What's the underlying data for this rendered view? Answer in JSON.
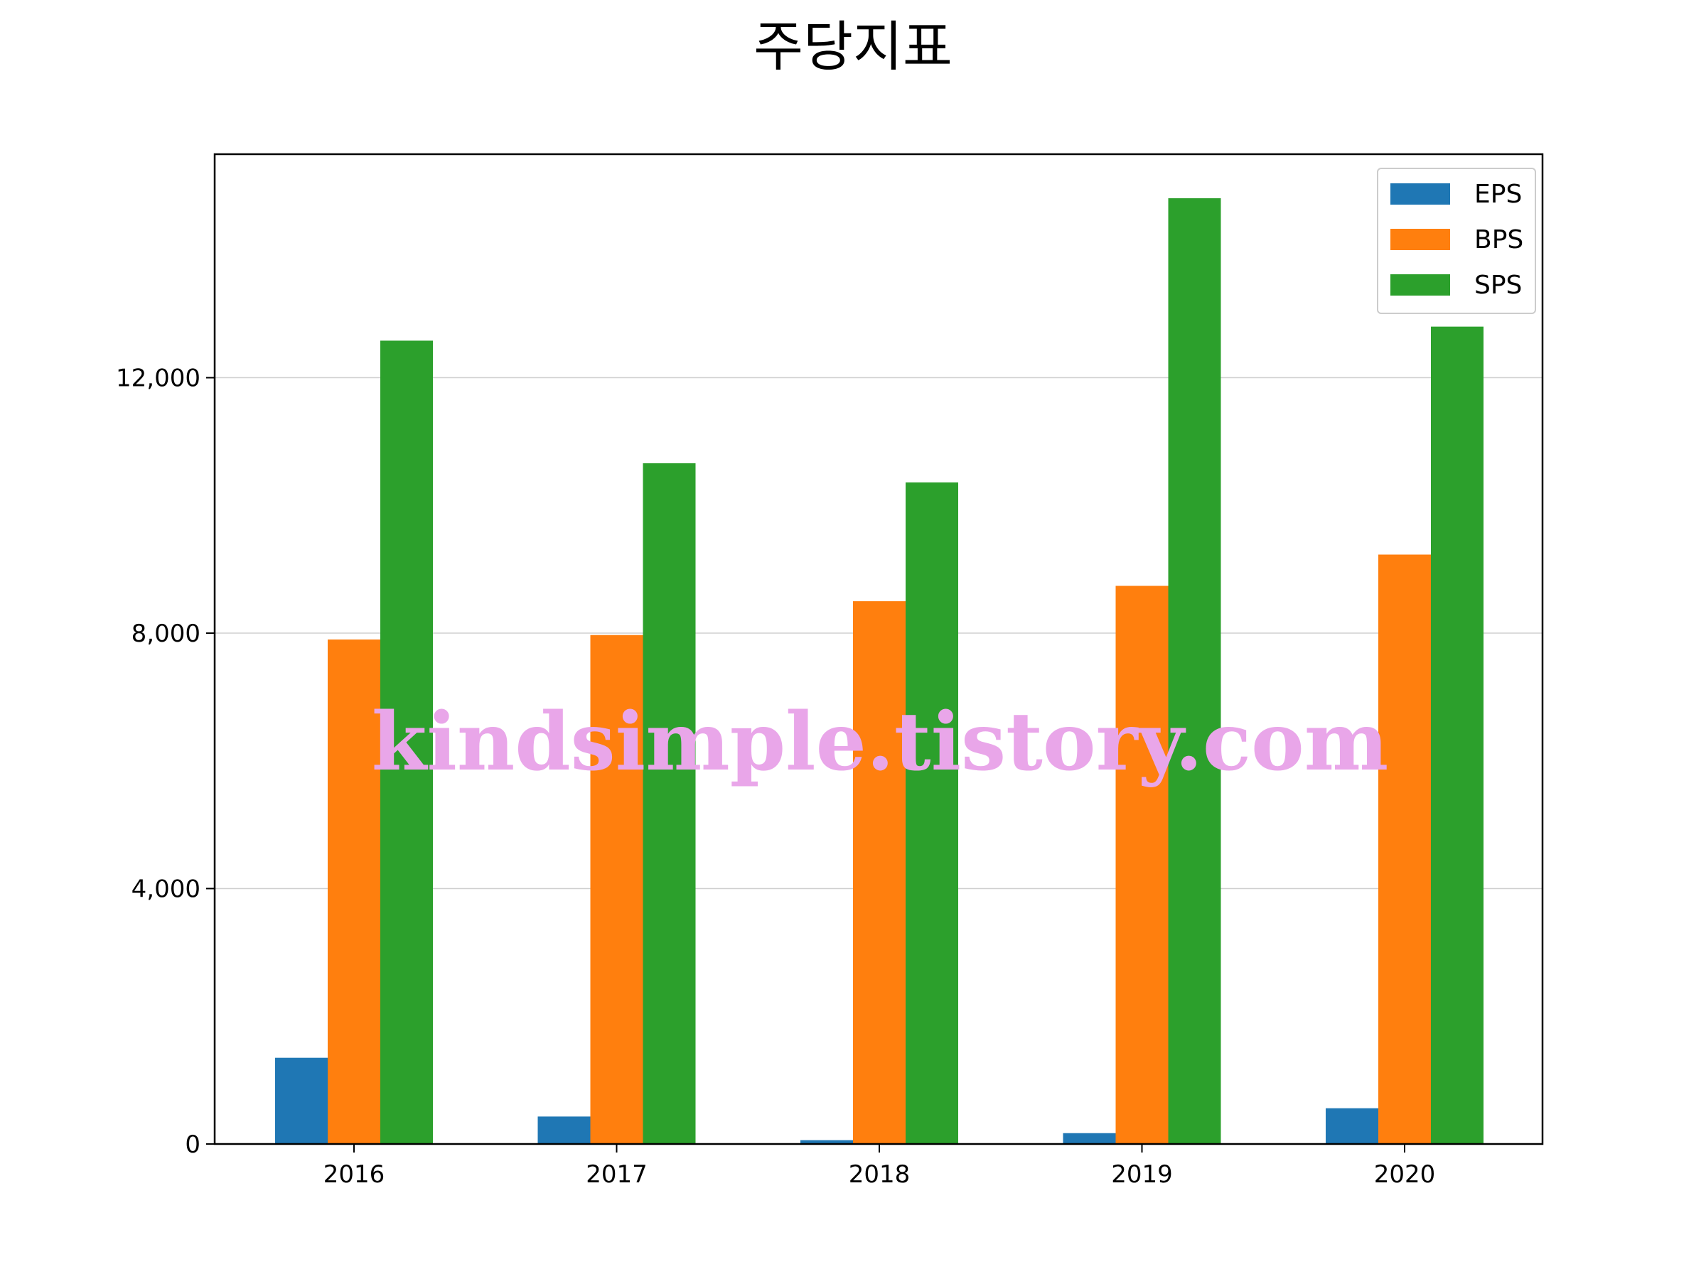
{
  "chart_data": {
    "type": "bar",
    "title": "주당지표",
    "xlabel": "",
    "ylabel": "",
    "categories": [
      "2016",
      "2017",
      "2018",
      "2019",
      "2020"
    ],
    "series": [
      {
        "name": "EPS",
        "color": "#1f77b4",
        "values": [
          1350,
          430,
          60,
          170,
          560
        ]
      },
      {
        "name": "BPS",
        "color": "#ff7f0e",
        "values": [
          7900,
          7970,
          8500,
          8740,
          9230
        ]
      },
      {
        "name": "SPS",
        "color": "#2ca02c",
        "values": [
          12580,
          10660,
          10360,
          14810,
          12800
        ]
      }
    ],
    "ylim": [
      0,
      15500
    ],
    "yticks": [
      0,
      4000,
      8000,
      12000
    ],
    "ytick_labels": [
      "0",
      "4,000",
      "8,000",
      "12,000"
    ],
    "grid": "y",
    "legend_position": "top-right"
  },
  "watermark": "kindsimple.tistory.com"
}
